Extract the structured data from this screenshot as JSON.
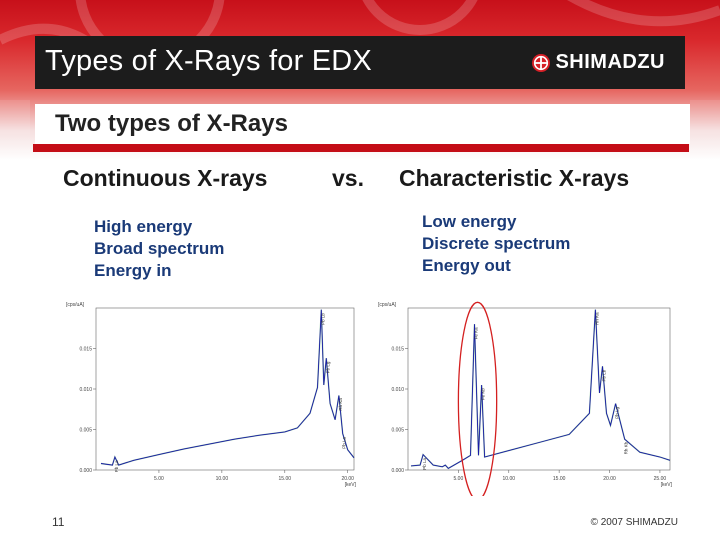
{
  "slide": {
    "title": "Types of X-Rays for EDX",
    "logo_text": "SHIMADZU",
    "subtitle": "Two types of X-Rays",
    "left_heading": "Continuous X-rays",
    "versus": "vs.",
    "right_heading": "Characteristic X-rays",
    "left_props": [
      "High energy",
      "Broad spectrum",
      "Energy in"
    ],
    "right_props": [
      "Low energy",
      "Discrete spectrum",
      "Energy out"
    ],
    "page_number": "11",
    "copyright": "© 2007 SHIMADZU"
  },
  "colors": {
    "brand_red": "#c40d16",
    "title_bar": "#1c1c1c",
    "accent_blue": "#1a3a78",
    "ellipse": "#d42020"
  },
  "chart_data": [
    {
      "type": "line",
      "x_unit": "[keV]",
      "xlim": [
        0,
        20.5
      ],
      "ylim": [
        0,
        0.02
      ],
      "x_ticks": [
        "5.00",
        "10.00",
        "15.00",
        "20.00"
      ],
      "y_ticks": [
        "0.000",
        "0.005",
        "0.010",
        "0.015"
      ],
      "y_axis_label": "[cps/uA]",
      "series": [
        {
          "x": [
            0.4,
            1.3,
            1.5,
            1.8,
            3,
            5,
            7,
            9,
            11,
            13,
            15,
            16,
            17,
            17.6,
            17.9,
            18.1,
            18.3,
            18.6,
            19,
            19.3,
            19.6,
            20,
            20.5
          ],
          "values": [
            0.0008,
            0.0006,
            0.0016,
            0.0006,
            0.0012,
            0.0019,
            0.0026,
            0.0032,
            0.0038,
            0.0043,
            0.0047,
            0.0052,
            0.007,
            0.0102,
            0.0198,
            0.0105,
            0.0138,
            0.0082,
            0.0062,
            0.0092,
            0.0045,
            0.0025,
            0.0015
          ]
        }
      ],
      "annotations": [
        "Pb La",
        "Pb Lb",
        "Pb Lg",
        "Rh Ka",
        "Pb La"
      ]
    },
    {
      "type": "line",
      "x_unit": "[keV]",
      "xlim": [
        0,
        26
      ],
      "ylim": [
        0,
        0.02
      ],
      "x_ticks": [
        "5.00",
        "10.00",
        "15.00",
        "20.00",
        "25.00"
      ],
      "y_ticks": [
        "0.000",
        "0.005",
        "0.010",
        "0.015"
      ],
      "y_axis_label": "[cps/uA]",
      "series": [
        {
          "x": [
            0.3,
            1.2,
            1.5,
            2.5,
            3.4,
            3.7,
            4,
            5.4,
            6.2,
            6.6,
            7,
            7.3,
            7.6,
            10,
            13,
            16,
            18,
            18.6,
            19,
            19.3,
            19.7,
            20.1,
            20.6,
            21.5,
            23,
            25,
            26
          ],
          "values": [
            0.0005,
            0.0006,
            0.0019,
            0.0006,
            0.0004,
            0.0006,
            0.0002,
            0.0012,
            0.0018,
            0.018,
            0.0018,
            0.0105,
            0.0016,
            0.0024,
            0.0034,
            0.0044,
            0.007,
            0.0198,
            0.0095,
            0.0128,
            0.007,
            0.0055,
            0.0082,
            0.0038,
            0.0022,
            0.0016,
            0.0012
          ]
        }
      ],
      "annotations": [
        "Fe Ka",
        "Fe Kb",
        "Pb La",
        "Rh Ka",
        "Pb Lb",
        "Pb Lg",
        "Rh Kb"
      ]
    }
  ]
}
